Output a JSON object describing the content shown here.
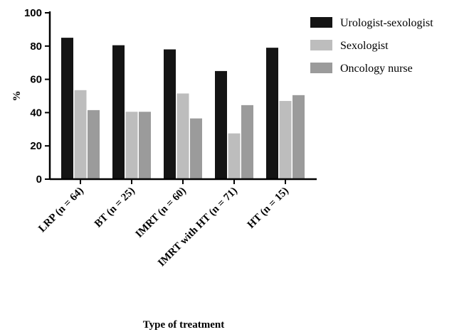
{
  "chart_data": {
    "type": "bar",
    "title": "",
    "xlabel": "Type of treatment",
    "ylabel": "%",
    "ylim": [
      0,
      100
    ],
    "yticks": [
      "0",
      "20",
      "40",
      "60",
      "80",
      "100"
    ],
    "categories": [
      "LRP (n = 64)",
      "BT (n = 25)",
      "IMRT (n = 60)",
      "IMRT with HT (n = 71)",
      "HT (n = 15)"
    ],
    "series": [
      {
        "name": "Urologist-sexologist",
        "color": "#141414",
        "values": [
          85,
          80.5,
          78,
          65,
          79
        ]
      },
      {
        "name": "Sexologist",
        "color": "#bdbdbd",
        "values": [
          53.5,
          40.5,
          51.5,
          27.5,
          47
        ]
      },
      {
        "name": "Oncology nurse",
        "color": "#9b9b9b",
        "values": [
          41.5,
          40.5,
          36.5,
          44.5,
          50.5
        ]
      }
    ],
    "legend_position": "top-right",
    "grid": false
  }
}
